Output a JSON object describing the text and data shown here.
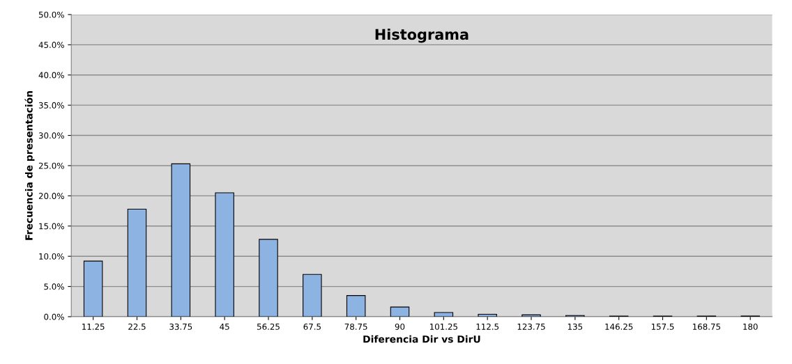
{
  "chart_data": {
    "type": "bar",
    "title": "Histograma",
    "xlabel": "Diferencia Dir vs DirU",
    "ylabel": "Frecuencia de presentación",
    "categories": [
      "11.25",
      "22.5",
      "33.75",
      "45",
      "56.25",
      "67.5",
      "78.75",
      "90",
      "101.25",
      "112.5",
      "123.75",
      "135",
      "146.25",
      "157.5",
      "168.75",
      "180"
    ],
    "values": [
      9.2,
      17.8,
      25.3,
      20.5,
      12.8,
      7.0,
      3.5,
      1.6,
      0.7,
      0.4,
      0.3,
      0.2,
      0.1,
      0.1,
      0.1,
      0.1
    ],
    "color": "#8db3e2",
    "ylim": [
      0,
      50
    ],
    "yticks": [
      {
        "value": 0,
        "label": "0.0%"
      },
      {
        "value": 5,
        "label": "5.0%"
      },
      {
        "value": 10,
        "label": "10.0%"
      },
      {
        "value": 15,
        "label": "15.0%"
      },
      {
        "value": 20,
        "label": "20.0%"
      },
      {
        "value": 25,
        "label": "25.0%"
      },
      {
        "value": 30,
        "label": "30.0%"
      },
      {
        "value": 35,
        "label": "35.0%"
      },
      {
        "value": 40,
        "label": "40.0%"
      },
      {
        "value": 45,
        "label": "45.0%"
      },
      {
        "value": 50,
        "label": "50.0%"
      }
    ],
    "grid": "y"
  }
}
